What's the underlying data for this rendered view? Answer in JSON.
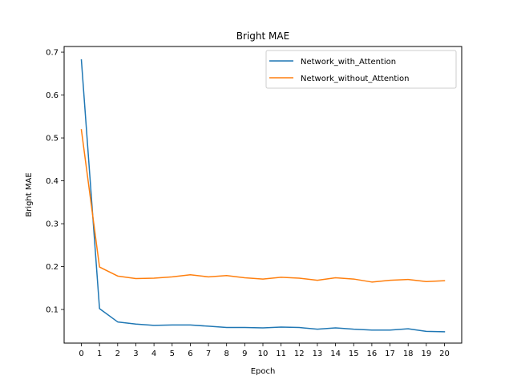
{
  "chart_data": {
    "type": "line",
    "title": "Bright MAE",
    "xlabel": "Epoch",
    "ylabel": "Bright MAE",
    "xlim": [
      -0.95,
      20.95
    ],
    "ylim": [
      0.0216,
      0.7132
    ],
    "x": [
      0,
      1,
      2,
      3,
      4,
      5,
      6,
      7,
      8,
      9,
      10,
      11,
      12,
      13,
      14,
      15,
      16,
      17,
      18,
      19,
      20
    ],
    "x_ticks": [
      "0",
      "1",
      "2",
      "3",
      "4",
      "5",
      "6",
      "7",
      "8",
      "9",
      "10",
      "11",
      "12",
      "13",
      "14",
      "15",
      "16",
      "17",
      "18",
      "19",
      "20"
    ],
    "y_ticks": [
      0.1,
      0.2,
      0.3,
      0.4,
      0.5,
      0.6,
      0.7
    ],
    "y_tick_labels": [
      "0.1",
      "0.2",
      "0.3",
      "0.4",
      "0.5",
      "0.6",
      "0.7"
    ],
    "grid": false,
    "legend_position": "top-right",
    "series": [
      {
        "name": "Network_with_Attention",
        "color": "#1f77b4",
        "values": [
          0.682,
          0.102,
          0.071,
          0.066,
          0.063,
          0.064,
          0.064,
          0.061,
          0.058,
          0.058,
          0.057,
          0.059,
          0.058,
          0.054,
          0.057,
          0.054,
          0.052,
          0.052,
          0.055,
          0.049,
          0.048
        ]
      },
      {
        "name": "Network_without_Attention",
        "color": "#ff7f0e",
        "values": [
          0.519,
          0.199,
          0.178,
          0.172,
          0.173,
          0.176,
          0.181,
          0.176,
          0.179,
          0.174,
          0.171,
          0.175,
          0.173,
          0.168,
          0.174,
          0.171,
          0.164,
          0.168,
          0.17,
          0.165,
          0.167
        ]
      }
    ]
  }
}
